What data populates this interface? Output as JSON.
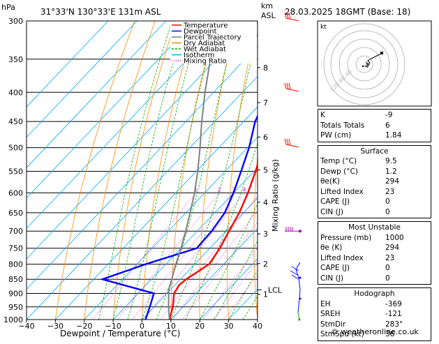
{
  "header": {
    "location": "31°33'N  130°33'E  131m  ASL",
    "datetime": "28.03.2025  18GMT  (Base: 18)",
    "hpa_label": "hPa",
    "km_label": "km",
    "asl_label": "ASL"
  },
  "chart_data": {
    "type": "line",
    "title": "",
    "xlabel": "Dewpoint / Temperature (°C)",
    "ylabel": "hPa",
    "right_axis_label": "Mixing Ratio (g/kg)",
    "xlim": [
      -40,
      40
    ],
    "ylim": [
      1000,
      300
    ],
    "x_ticks": [
      -40,
      -30,
      -20,
      -10,
      0,
      10,
      20,
      30,
      40
    ],
    "x_tick_labels": [
      "−40",
      "−30",
      "−20",
      "−10",
      "0",
      "10",
      "20",
      "30",
      "40"
    ],
    "pressure_levels": [
      300,
      350,
      400,
      450,
      500,
      550,
      600,
      650,
      700,
      750,
      800,
      850,
      900,
      950,
      1000
    ],
    "km_levels": [
      {
        "km": "8",
        "p": 362
      },
      {
        "km": "7",
        "p": 417
      },
      {
        "km": "6",
        "p": 479
      },
      {
        "km": "5",
        "p": 547
      },
      {
        "km": "4",
        "p": 623
      },
      {
        "km": "3",
        "p": 708
      },
      {
        "km": "2",
        "p": 798
      },
      {
        "km": "1",
        "p": 903
      }
    ],
    "lcl": {
      "label": "LCL",
      "p": 887
    },
    "mixing_ratio_labels": [
      "1",
      "2",
      "3",
      "4",
      "6",
      "8",
      "10",
      "16",
      "20",
      "25"
    ],
    "legend": [
      {
        "name": "Temperature",
        "color": "#ff0000"
      },
      {
        "name": "Dewpoint",
        "color": "#0000ff"
      },
      {
        "name": "Parcel Trajectory",
        "color": "#808080"
      },
      {
        "name": "Dry Adiabat",
        "color": "#ff8800"
      },
      {
        "name": "Wet Adiabat",
        "color": "#00aa00"
      },
      {
        "name": "Isotherm",
        "color": "#00aaff"
      },
      {
        "name": "Mixing Ratio",
        "color": "#ff00ff"
      }
    ],
    "series": [
      {
        "name": "Temperature",
        "color": "#ff0000",
        "points": [
          {
            "p": 1000,
            "t": 9.5
          },
          {
            "p": 950,
            "t": 6.5
          },
          {
            "p": 900,
            "t": 2.5
          },
          {
            "p": 870,
            "t": 1.5
          },
          {
            "p": 850,
            "t": 2.0
          },
          {
            "p": 800,
            "t": 5.0
          },
          {
            "p": 750,
            "t": 3.5
          },
          {
            "p": 700,
            "t": 1.0
          },
          {
            "p": 650,
            "t": -1.5
          },
          {
            "p": 600,
            "t": -5.0
          },
          {
            "p": 550,
            "t": -9.5
          },
          {
            "p": 500,
            "t": -14.5
          },
          {
            "p": 450,
            "t": -20.5
          },
          {
            "p": 400,
            "t": -27.5
          },
          {
            "p": 350,
            "t": -35.5
          },
          {
            "p": 300,
            "t": -44.5
          }
        ]
      },
      {
        "name": "Dewpoint",
        "color": "#0000ff",
        "points": [
          {
            "p": 1000,
            "t": 1.2
          },
          {
            "p": 950,
            "t": -1.5
          },
          {
            "p": 900,
            "t": -4.5
          },
          {
            "p": 850,
            "t": -27.0
          },
          {
            "p": 800,
            "t": -17.0
          },
          {
            "p": 750,
            "t": -4.5
          },
          {
            "p": 700,
            "t": -5.0
          },
          {
            "p": 650,
            "t": -6.5
          },
          {
            "p": 600,
            "t": -10.0
          },
          {
            "p": 550,
            "t": -14.5
          },
          {
            "p": 500,
            "t": -19.5
          },
          {
            "p": 450,
            "t": -26.0
          },
          {
            "p": 400,
            "t": -31.0
          },
          {
            "p": 350,
            "t": -39.0
          },
          {
            "p": 300,
            "t": -48.0
          }
        ]
      },
      {
        "name": "Parcel Trajectory",
        "color": "#808080",
        "points": [
          {
            "p": 1000,
            "t": 9.5
          },
          {
            "p": 950,
            "t": 5.0
          },
          {
            "p": 887,
            "t": -0.5
          },
          {
            "p": 850,
            "t": -3.0
          },
          {
            "p": 800,
            "t": -6.5
          },
          {
            "p": 750,
            "t": -10.0
          },
          {
            "p": 700,
            "t": -14.0
          },
          {
            "p": 650,
            "t": -18.5
          },
          {
            "p": 600,
            "t": -23.5
          },
          {
            "p": 550,
            "t": -29.5
          },
          {
            "p": 500,
            "t": -36.5
          },
          {
            "p": 450,
            "t": -44.5
          },
          {
            "p": 400,
            "t": -53.0
          },
          {
            "p": 350,
            "t": -62.0
          },
          {
            "p": 300,
            "t": -72.0
          }
        ]
      }
    ]
  },
  "indices": [
    {
      "label": "K",
      "value": "-9"
    },
    {
      "label": "Totals Totals",
      "value": "6"
    },
    {
      "label": "PW (cm)",
      "value": "1.84"
    }
  ],
  "surface": {
    "title": "Surface",
    "rows": [
      {
        "label": "Temp (°C)",
        "value": "9.5"
      },
      {
        "label": "Dewp (°C)",
        "value": "1.2"
      },
      {
        "label": "θe(K)",
        "value": "294"
      },
      {
        "label": "Lifted Index",
        "value": "23"
      },
      {
        "label": "CAPE (J)",
        "value": "0"
      },
      {
        "label": "CIN (J)",
        "value": "0"
      }
    ]
  },
  "most_unstable": {
    "title": "Most Unstable",
    "rows": [
      {
        "label": "Pressure (mb)",
        "value": "1000"
      },
      {
        "label": "θe (K)",
        "value": "294"
      },
      {
        "label": "Lifted Index",
        "value": "23"
      },
      {
        "label": "CAPE (J)",
        "value": "0"
      },
      {
        "label": "CIN (J)",
        "value": "0"
      }
    ]
  },
  "hodograph_table": {
    "title": "Hodograph",
    "rows": [
      {
        "label": "EH",
        "value": "-369"
      },
      {
        "label": "SREH",
        "value": "-121"
      },
      {
        "label": "StmDir",
        "value": "283°"
      },
      {
        "label": "StmSpd (kt)",
        "value": "36"
      }
    ]
  },
  "hodograph": {
    "unit_label": "kt",
    "ring_labels": [
      "20",
      "40"
    ],
    "ring_watermark": "120 80 40"
  },
  "copyright": "© weatheronline.co.uk",
  "colors": {
    "temperature": "#ff0000",
    "dewpoint": "#0000ff",
    "parcel": "#808080",
    "dry_adiabat": "#ff8800",
    "wet_adiabat": "#00aa00",
    "isotherm": "#00aaff",
    "mixing_ratio": "#ff00ff",
    "wind_barb_upper": "#ff0000",
    "wind_barb_mid": "#aa00aa",
    "wind_barb_low": "#0000ff",
    "wind_barb_surface": "#00aa00"
  }
}
